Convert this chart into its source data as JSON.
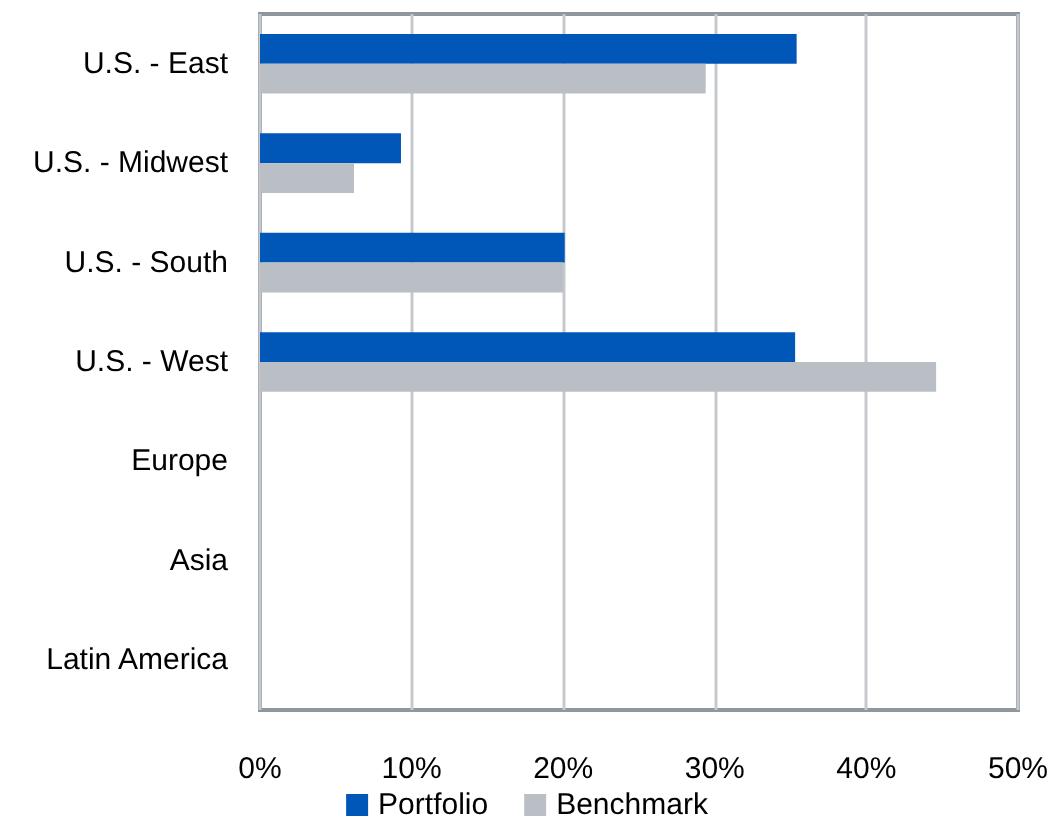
{
  "chart_data": {
    "type": "bar",
    "orientation": "horizontal",
    "categories": [
      "U.S. - East",
      "U.S. - Midwest",
      "U.S. - South",
      "U.S. - West",
      "Europe",
      "Asia",
      "Latin America"
    ],
    "series": [
      {
        "name": "Portfolio",
        "color": "#0057b8",
        "values": [
          35.4,
          9.3,
          20.1,
          35.3,
          null,
          null,
          null
        ]
      },
      {
        "name": "Benchmark",
        "color": "#babfc5",
        "values": [
          29.4,
          6.2,
          20.0,
          44.6,
          null,
          null,
          null
        ]
      }
    ],
    "xlim": [
      0,
      50
    ],
    "xticks": [
      {
        "value": 0,
        "label": "0%"
      },
      {
        "value": 10,
        "label": "10%"
      },
      {
        "value": 20,
        "label": "20%"
      },
      {
        "value": 30,
        "label": "30%"
      },
      {
        "value": 40,
        "label": "40%"
      },
      {
        "value": 50,
        "label": "50%"
      }
    ],
    "grid": "x",
    "legend": "bottom"
  }
}
